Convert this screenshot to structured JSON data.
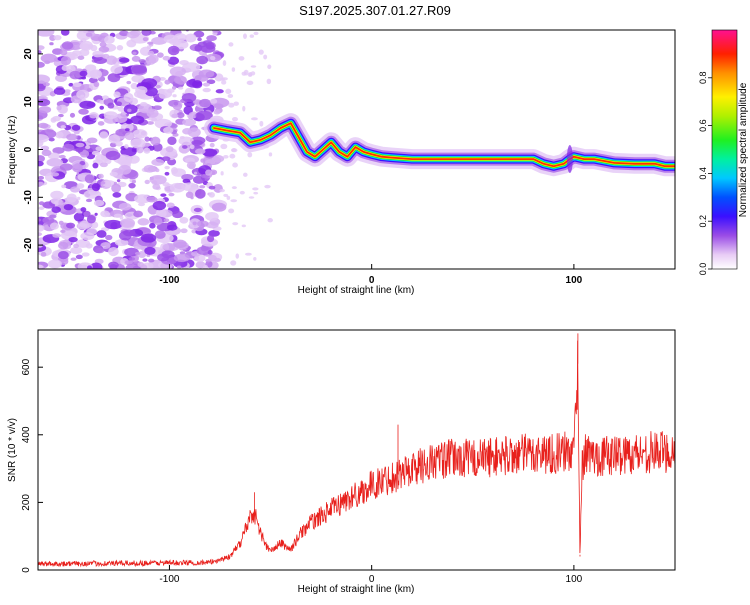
{
  "page_title": "S197.2025.307.01.27.R09",
  "chart_data": [
    {
      "type": "heatmap",
      "xlabel": "Height of straight line (km)",
      "ylabel": "Frequency (Hz)",
      "xlim": [
        -165,
        150
      ],
      "ylim": [
        -25,
        25
      ],
      "x_ticks": [
        -100,
        0,
        100
      ],
      "y_ticks": [
        -20,
        -10,
        0,
        10,
        20
      ],
      "colorbar": {
        "label": "Normalized spectral amplitude",
        "range": [
          0,
          1
        ],
        "ticks": [
          0.0,
          0.2,
          0.4,
          0.6,
          0.8
        ],
        "tick_labels": [
          "0.0",
          "0.2",
          "0.4",
          "0.6",
          "0.8"
        ]
      },
      "ridge_track": {
        "x": [
          -78,
          -72,
          -65,
          -60,
          -55,
          -50,
          -45,
          -40,
          -36,
          -32,
          -28,
          -24,
          -20,
          -16,
          -12,
          -8,
          -4,
          0,
          5,
          10,
          20,
          40,
          60,
          70,
          80,
          85,
          90,
          95,
          98,
          100,
          105,
          110,
          120,
          130,
          140,
          145,
          150
        ],
        "y": [
          4.5,
          4,
          3.5,
          1.5,
          2,
          3,
          4.5,
          5.5,
          2.5,
          -0.5,
          -1.5,
          0,
          1.5,
          -0.5,
          -1.5,
          0.5,
          -0.5,
          -1,
          -1.5,
          -1.7,
          -2,
          -2,
          -2,
          -2,
          -2,
          -3,
          -3.5,
          -3,
          -2,
          -1.5,
          -2,
          -2,
          -2.8,
          -3,
          -3,
          -3.5,
          -3.5
        ]
      },
      "noise_region_x": [
        -165,
        -75
      ]
    },
    {
      "type": "line",
      "xlabel": "Height of straight line (km)",
      "ylabel": "SNR (10 * v/v)",
      "xlim": [
        -165,
        150
      ],
      "ylim": [
        0,
        710
      ],
      "x_ticks": [
        -100,
        0,
        100
      ],
      "y_ticks": [
        0,
        200,
        400,
        600
      ],
      "series": [
        {
          "name": "SNR",
          "color": "#e8201c",
          "envelope_x": [
            -165,
            -80,
            -70,
            -65,
            -60,
            -58,
            -55,
            -52,
            -50,
            -45,
            -40,
            -35,
            -30,
            -20,
            -10,
            0,
            10,
            20,
            30,
            40,
            50,
            60,
            70,
            80,
            90,
            100,
            101,
            102,
            103,
            104,
            105,
            107,
            110,
            120,
            130,
            140,
            150
          ],
          "envelope_y": [
            18,
            22,
            40,
            80,
            160,
            170,
            110,
            70,
            55,
            80,
            60,
            110,
            140,
            180,
            215,
            250,
            275,
            300,
            320,
            330,
            330,
            335,
            340,
            345,
            345,
            350,
            500,
            610,
            45,
            300,
            340,
            345,
            335,
            340,
            345,
            350,
            350
          ],
          "spikes": [
            {
              "x": 102,
              "y": 700
            },
            {
              "x": 103,
              "y": 40
            },
            {
              "x": -58,
              "y": 230
            },
            {
              "x": 13,
              "y": 430
            }
          ]
        }
      ]
    }
  ],
  "colors": {
    "line": "#e8201c",
    "axis": "#000000"
  }
}
